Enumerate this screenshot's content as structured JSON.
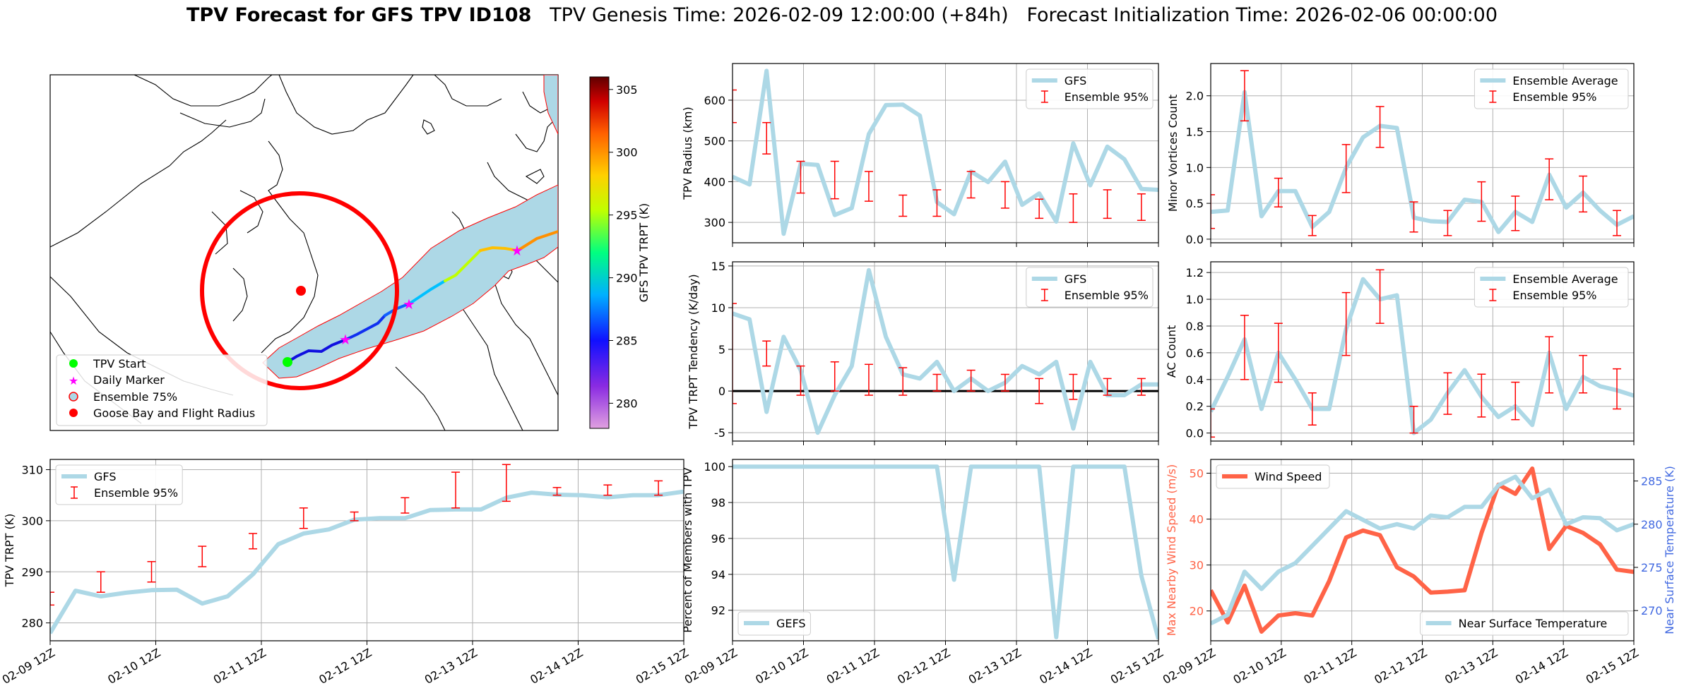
{
  "title": {
    "bold": "TPV Forecast for GFS TPV ID108",
    "genesis": "TPV Genesis Time: 2026-02-09 12:00:00 (+84h)",
    "init": "Forecast Initialization Time: 2026-02-06 00:00:00"
  },
  "time_ticks": [
    "02-09 12Z",
    "02-10 12Z",
    "02-11 12Z",
    "02-12 12Z",
    "02-13 12Z",
    "02-14 12Z",
    "02-15 12Z"
  ],
  "colors": {
    "gfs": "#add8e6",
    "ensemble": "#ff0000",
    "wind": "#ff6347",
    "temp_axis": "#4169e1",
    "zero_line": "#000000"
  },
  "map": {
    "legend": [
      "TPV Start",
      "Daily Marker",
      "Ensemble 75%",
      "Goose Bay and Flight Radius"
    ],
    "colorbar": {
      "label": "GFS TPV TRPT (K)",
      "ticks": [
        280,
        285,
        290,
        295,
        300,
        305
      ],
      "range": [
        278,
        306
      ]
    }
  },
  "chart_data": [
    {
      "id": "trpt",
      "type": "line",
      "ylabel": "TPV TRPT (K)",
      "ylim": [
        276.5,
        312
      ],
      "yticks": [
        280,
        290,
        300,
        310
      ],
      "legend": [
        "GFS",
        "Ensemble 95%"
      ],
      "legend_pos": "upper-left",
      "series": [
        {
          "name": "GFS",
          "values": [
            278,
            286.3,
            285.2,
            285.9,
            286.4,
            286.5,
            283.8,
            285.2,
            289.5,
            295.4,
            297.5,
            298.3,
            300.2,
            300.5,
            300.5,
            302.1,
            302.2,
            302.2,
            304.5,
            305.5,
            305.1,
            305.0,
            304.6,
            305.0,
            305.0,
            305.7
          ]
        }
      ],
      "ensemble": [
        [
          283.5,
          286
        ],
        null,
        [
          286,
          290
        ],
        null,
        [
          288,
          292
        ],
        null,
        [
          291,
          295
        ],
        null,
        [
          294.5,
          297.5
        ],
        null,
        [
          298.5,
          302.5
        ],
        null,
        [
          300,
          301.7
        ],
        null,
        [
          301.5,
          304.5
        ],
        null,
        [
          302.5,
          309.5
        ],
        null,
        [
          303.8,
          311
        ],
        null,
        [
          305,
          306.5
        ],
        null,
        [
          305,
          307
        ],
        null,
        [
          305,
          307.8
        ],
        null
      ]
    },
    {
      "id": "radius",
      "type": "line",
      "ylabel": "TPV Radius (km)",
      "ylim": [
        250,
        690
      ],
      "yticks": [
        300,
        400,
        500,
        600
      ],
      "legend": [
        "GFS",
        "Ensemble 95%"
      ],
      "legend_pos": "upper-right",
      "series": [
        {
          "name": "GFS",
          "values": [
            412,
            393,
            672,
            272,
            444,
            441,
            318,
            335,
            517,
            588,
            589,
            562,
            350,
            320,
            425,
            399,
            449,
            343,
            371,
            302,
            494,
            391,
            486,
            455,
            382,
            380
          ]
        }
      ],
      "ensemble": [
        [
          545,
          625
        ],
        null,
        [
          468,
          545
        ],
        null,
        [
          372,
          450
        ],
        null,
        [
          358,
          450
        ],
        null,
        [
          352,
          425
        ],
        null,
        [
          315,
          367
        ],
        null,
        [
          315,
          380
        ],
        null,
        [
          360,
          425
        ],
        null,
        [
          335,
          400
        ],
        null,
        [
          310,
          357
        ],
        null,
        [
          300,
          370
        ],
        null,
        [
          310,
          380
        ],
        null,
        [
          305,
          370
        ],
        null
      ]
    },
    {
      "id": "vortices",
      "type": "line",
      "ylabel": "Minor Vortices Count",
      "ylim": [
        -0.05,
        2.45
      ],
      "yticks": [
        0.0,
        0.5,
        1.0,
        1.5,
        2.0
      ],
      "legend": [
        "Ensemble Average",
        "Ensemble 95%"
      ],
      "legend_pos": "upper-right",
      "series": [
        {
          "name": "Ensemble Average",
          "values": [
            0.38,
            0.4,
            2.05,
            0.32,
            0.67,
            0.67,
            0.17,
            0.38,
            1.0,
            1.42,
            1.58,
            1.55,
            0.3,
            0.25,
            0.24,
            0.55,
            0.52,
            0.1,
            0.38,
            0.24,
            0.9,
            0.44,
            0.65,
            0.4,
            0.2,
            0.32
          ]
        }
      ],
      "ensemble": [
        [
          0.15,
          0.62
        ],
        null,
        [
          1.65,
          2.35
        ],
        null,
        [
          0.45,
          0.85
        ],
        null,
        [
          0.05,
          0.33
        ],
        null,
        [
          0.65,
          1.32
        ],
        null,
        [
          1.28,
          1.85
        ],
        null,
        [
          0.1,
          0.52
        ],
        null,
        [
          0.05,
          0.4
        ],
        null,
        [
          0.25,
          0.8
        ],
        null,
        [
          0.12,
          0.6
        ],
        null,
        [
          0.55,
          1.12
        ],
        null,
        [
          0.38,
          0.88
        ],
        null,
        [
          0.05,
          0.4
        ],
        null
      ]
    },
    {
      "id": "tendency",
      "type": "line",
      "ylabel": "TPV TRPT Tendency (K/day)",
      "ylim": [
        -6,
        15.5
      ],
      "yticks": [
        -5,
        0,
        5,
        10,
        15
      ],
      "legend": [
        "GFS",
        "Ensemble 95%"
      ],
      "legend_pos": "upper-right",
      "series": [
        {
          "name": "GFS",
          "values": [
            9.3,
            8.6,
            -2.5,
            6.5,
            2.5,
            -5.0,
            -0.5,
            3.0,
            14.5,
            6.5,
            2.0,
            1.5,
            3.5,
            0.0,
            1.5,
            0.0,
            1.0,
            3.0,
            2.0,
            3.5,
            -4.5,
            3.5,
            -0.5,
            -0.5,
            0.8,
            0.8
          ]
        }
      ],
      "ensemble": [
        [
          -1.5,
          10.5
        ],
        null,
        [
          3,
          6
        ],
        null,
        [
          -0.5,
          3
        ],
        null,
        [
          0,
          3.5
        ],
        null,
        [
          -0.5,
          3.2
        ],
        null,
        [
          -0.5,
          2.8
        ],
        null,
        [
          0,
          2
        ],
        null,
        [
          0,
          2.5
        ],
        null,
        [
          0,
          2
        ],
        null,
        [
          -1.5,
          1.5
        ],
        null,
        [
          -1,
          2
        ],
        null,
        [
          -0.5,
          1.5
        ],
        null,
        [
          -0.5,
          1.5
        ],
        null
      ]
    },
    {
      "id": "ac",
      "type": "line",
      "ylabel": "AC Count",
      "ylim": [
        -0.06,
        1.28
      ],
      "yticks": [
        0.0,
        0.2,
        0.4,
        0.6,
        0.8,
        1.0,
        1.2
      ],
      "legend": [
        "Ensemble Average",
        "Ensemble 95%"
      ],
      "legend_pos": "upper-right",
      "series": [
        {
          "name": "Ensemble Average",
          "values": [
            0.16,
            0.42,
            0.7,
            0.18,
            0.6,
            0.4,
            0.18,
            0.18,
            0.78,
            1.15,
            1.0,
            1.03,
            0.0,
            0.1,
            0.3,
            0.47,
            0.27,
            0.12,
            0.2,
            0.06,
            0.6,
            0.18,
            0.42,
            0.35,
            0.32,
            0.28
          ]
        }
      ],
      "ensemble": [
        [
          -0.03,
          0.18
        ],
        null,
        [
          0.4,
          0.88
        ],
        null,
        [
          0.38,
          0.82
        ],
        null,
        [
          0.06,
          0.3
        ],
        null,
        [
          0.58,
          1.05
        ],
        null,
        [
          0.82,
          1.22
        ],
        null,
        [
          0,
          0.2
        ],
        null,
        [
          0.14,
          0.45
        ],
        null,
        [
          0.12,
          0.44
        ],
        null,
        [
          0.1,
          0.38
        ],
        null,
        [
          0.3,
          0.72
        ],
        null,
        [
          0.3,
          0.58
        ],
        null,
        [
          0.18,
          0.48
        ],
        null
      ]
    },
    {
      "id": "percent",
      "type": "line",
      "ylabel": "Percent of Members with TPV",
      "ylim": [
        90.3,
        100.4
      ],
      "yticks": [
        92,
        94,
        96,
        98,
        100
      ],
      "legend": [
        "GEFS"
      ],
      "legend_pos": "lower-left",
      "series": [
        {
          "name": "GEFS",
          "values": [
            100,
            100,
            100,
            100,
            100,
            100,
            100,
            100,
            100,
            100,
            100,
            100,
            100,
            93.7,
            100,
            100,
            100,
            100,
            100,
            90.5,
            100,
            100,
            100,
            100,
            93.9,
            90.4
          ]
        }
      ]
    },
    {
      "id": "wind_temp",
      "type": "line",
      "ylabel": "Max Nearby Wind Speed (m/s)",
      "ylim": [
        13.5,
        53
      ],
      "yticks": [
        20,
        30,
        40,
        50
      ],
      "y2label": "Near Surface Temperature (K)",
      "y2lim": [
        266.5,
        287.5
      ],
      "y2ticks": [
        270,
        275,
        280,
        285
      ],
      "series": [
        {
          "name": "Wind Speed",
          "axis": "left",
          "values": [
            24.5,
            17.5,
            25.5,
            15.5,
            19,
            19.5,
            19,
            26.5,
            36,
            37.5,
            36.5,
            29.5,
            27.5,
            24,
            24.2,
            24.5,
            37,
            47.5,
            45.5,
            51,
            33.5,
            38.5,
            37,
            34.5,
            29,
            28.5
          ]
        },
        {
          "name": "Near Surface Temperature",
          "axis": "right",
          "values": [
            268.5,
            269.5,
            274.5,
            272.5,
            274.5,
            275.5,
            277.5,
            279.5,
            281.5,
            280.5,
            279.5,
            280,
            279.5,
            281,
            280.8,
            282,
            282,
            284.5,
            285.5,
            283,
            284,
            280,
            280.8,
            280.7,
            279.3,
            280
          ]
        }
      ]
    }
  ]
}
